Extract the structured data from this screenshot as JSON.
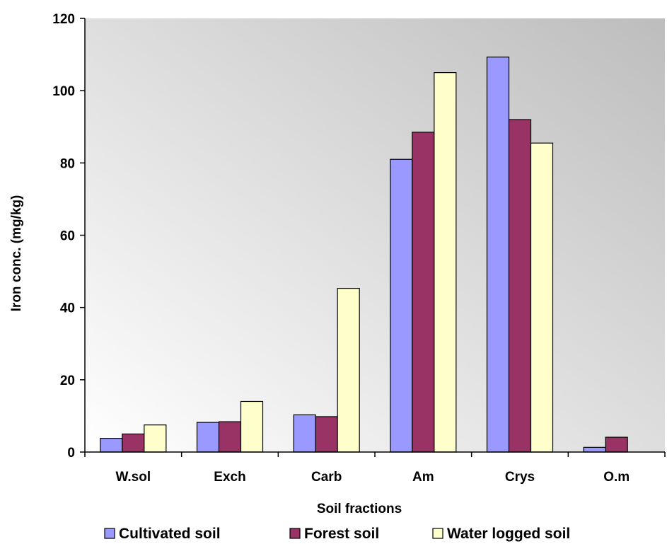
{
  "chart_data": {
    "type": "bar",
    "categories": [
      "W.sol",
      "Exch",
      "Carb",
      "Am",
      "Crys",
      "O.m"
    ],
    "series": [
      {
        "name": "Cultivated soil",
        "color": "#9999ff",
        "values": [
          3.8,
          8.2,
          10.3,
          81.0,
          109.3,
          1.3
        ]
      },
      {
        "name": "Forest soil",
        "color": "#993366",
        "values": [
          5.0,
          8.4,
          9.8,
          88.5,
          92.0,
          4.1
        ]
      },
      {
        "name": "Water logged soil",
        "color": "#ffffcc",
        "values": [
          7.5,
          14.0,
          45.3,
          105.0,
          85.5,
          0
        ]
      }
    ],
    "xlabel": "Soil fractions",
    "ylabel": "Iron conc. (mg/kg)",
    "ylim": [
      0,
      120
    ],
    "yticks": [
      0,
      20,
      40,
      60,
      80,
      100,
      120
    ],
    "legend_position": "bottom",
    "grid": false,
    "plot_background": "gradient light-to-gray"
  }
}
